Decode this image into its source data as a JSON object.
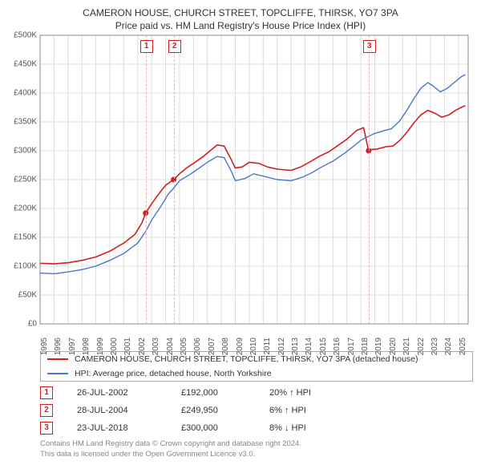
{
  "title_line1": "CAMERON HOUSE, CHURCH STREET, TOPCLIFFE, THIRSK, YO7 3PA",
  "title_line2": "Price paid vs. HM Land Registry's House Price Index (HPI)",
  "chart": {
    "type": "line",
    "background_color": "#ffffff",
    "grid_color": "#dddddd",
    "axis_color": "#888888",
    "xlim": [
      1995,
      2025.7
    ],
    "ylim": [
      0,
      500000
    ],
    "ytick_step": 50000,
    "ytick_prefix": "£",
    "ytick_suffix": "K",
    "ytick_divisor": 1000,
    "xticks": [
      1995,
      1996,
      1997,
      1998,
      1999,
      2000,
      2001,
      2002,
      2003,
      2004,
      2005,
      2006,
      2007,
      2008,
      2009,
      2010,
      2011,
      2012,
      2013,
      2014,
      2015,
      2016,
      2017,
      2018,
      2019,
      2020,
      2021,
      2022,
      2023,
      2024,
      2025
    ],
    "series": [
      {
        "name": "property",
        "label": "CAMERON HOUSE, CHURCH STREET, TOPCLIFFE, THIRSK, YO7 3PA (detached house)",
        "color": "#d02020",
        "line_width": 1.6,
        "points": [
          [
            1995,
            105000
          ],
          [
            1996,
            104000
          ],
          [
            1997,
            106000
          ],
          [
            1998,
            110000
          ],
          [
            1999,
            116000
          ],
          [
            2000,
            126000
          ],
          [
            2001,
            140000
          ],
          [
            2001.8,
            155000
          ],
          [
            2002.3,
            175000
          ],
          [
            2002.57,
            192000
          ],
          [
            2003,
            208000
          ],
          [
            2003.5,
            225000
          ],
          [
            2004,
            240000
          ],
          [
            2004.58,
            249950
          ],
          [
            2005,
            260000
          ],
          [
            2005.5,
            270000
          ],
          [
            2006,
            278000
          ],
          [
            2006.7,
            290000
          ],
          [
            2007.2,
            300000
          ],
          [
            2007.7,
            310000
          ],
          [
            2008.2,
            308000
          ],
          [
            2008.7,
            285000
          ],
          [
            2009,
            270000
          ],
          [
            2009.5,
            272000
          ],
          [
            2010,
            280000
          ],
          [
            2010.7,
            278000
          ],
          [
            2011.3,
            272000
          ],
          [
            2012,
            268000
          ],
          [
            2013,
            266000
          ],
          [
            2013.7,
            272000
          ],
          [
            2014.3,
            280000
          ],
          [
            2015,
            290000
          ],
          [
            2015.7,
            298000
          ],
          [
            2016.3,
            308000
          ],
          [
            2017,
            320000
          ],
          [
            2017.7,
            335000
          ],
          [
            2018.2,
            340000
          ],
          [
            2018.56,
            300000
          ],
          [
            2018.7,
            302000
          ],
          [
            2019.2,
            303000
          ],
          [
            2019.8,
            307000
          ],
          [
            2020.3,
            308000
          ],
          [
            2020.8,
            318000
          ],
          [
            2021.3,
            332000
          ],
          [
            2021.8,
            348000
          ],
          [
            2022.3,
            362000
          ],
          [
            2022.8,
            370000
          ],
          [
            2023.3,
            365000
          ],
          [
            2023.8,
            358000
          ],
          [
            2024.3,
            362000
          ],
          [
            2024.8,
            370000
          ],
          [
            2025.2,
            375000
          ],
          [
            2025.5,
            378000
          ]
        ],
        "markers": [
          {
            "x": 2002.57,
            "y": 192000
          },
          {
            "x": 2004.58,
            "y": 249950
          },
          {
            "x": 2018.56,
            "y": 300000
          }
        ],
        "marker_color": "#d02020",
        "marker_radius": 3.5
      },
      {
        "name": "hpi",
        "label": "HPI: Average price, detached house, North Yorkshire",
        "color": "#4a78c8",
        "line_width": 1.4,
        "points": [
          [
            1995,
            88000
          ],
          [
            1996,
            87000
          ],
          [
            1997,
            90000
          ],
          [
            1998,
            94000
          ],
          [
            1999,
            100000
          ],
          [
            2000,
            110000
          ],
          [
            2001,
            122000
          ],
          [
            2002,
            140000
          ],
          [
            2002.57,
            160000
          ],
          [
            2003,
            180000
          ],
          [
            2003.7,
            205000
          ],
          [
            2004.2,
            225000
          ],
          [
            2004.58,
            235000
          ],
          [
            2005,
            248000
          ],
          [
            2005.7,
            258000
          ],
          [
            2006.3,
            268000
          ],
          [
            2007,
            280000
          ],
          [
            2007.7,
            290000
          ],
          [
            2008.2,
            288000
          ],
          [
            2008.7,
            265000
          ],
          [
            2009,
            248000
          ],
          [
            2009.7,
            252000
          ],
          [
            2010.3,
            260000
          ],
          [
            2011,
            256000
          ],
          [
            2012,
            250000
          ],
          [
            2013,
            248000
          ],
          [
            2013.8,
            254000
          ],
          [
            2014.5,
            262000
          ],
          [
            2015.2,
            272000
          ],
          [
            2016,
            282000
          ],
          [
            2016.8,
            295000
          ],
          [
            2017.5,
            308000
          ],
          [
            2018,
            318000
          ],
          [
            2018.56,
            325000
          ],
          [
            2019,
            330000
          ],
          [
            2019.7,
            335000
          ],
          [
            2020.2,
            338000
          ],
          [
            2020.8,
            352000
          ],
          [
            2021.3,
            370000
          ],
          [
            2021.8,
            390000
          ],
          [
            2022.3,
            408000
          ],
          [
            2022.8,
            418000
          ],
          [
            2023.2,
            412000
          ],
          [
            2023.7,
            402000
          ],
          [
            2024.2,
            408000
          ],
          [
            2024.8,
            420000
          ],
          [
            2025.2,
            428000
          ],
          [
            2025.5,
            432000
          ]
        ]
      }
    ],
    "event_lines": [
      {
        "n": "1",
        "x": 2002.57,
        "color": "#e8b0b0"
      },
      {
        "n": "2",
        "x": 2004.58,
        "color": "#e8b0b0"
      },
      {
        "n": "3",
        "x": 2018.56,
        "color": "#e8b0b0"
      }
    ]
  },
  "legend": {
    "rows": [
      {
        "color": "#d02020",
        "label_key": "chart.series.0.label"
      },
      {
        "color": "#4a78c8",
        "label_key": "chart.series.1.label"
      }
    ]
  },
  "events": [
    {
      "n": "1",
      "date": "26-JUL-2002",
      "price": "£192,000",
      "diff": "20% ↑ HPI"
    },
    {
      "n": "2",
      "date": "28-JUL-2004",
      "price": "£249,950",
      "diff": "6% ↑ HPI"
    },
    {
      "n": "3",
      "date": "23-JUL-2018",
      "price": "£300,000",
      "diff": "8% ↓ HPI"
    }
  ],
  "footer_line1": "Contains HM Land Registry data © Crown copyright and database right 2024.",
  "footer_line2": "This data is licensed under the Open Government Licence v3.0."
}
